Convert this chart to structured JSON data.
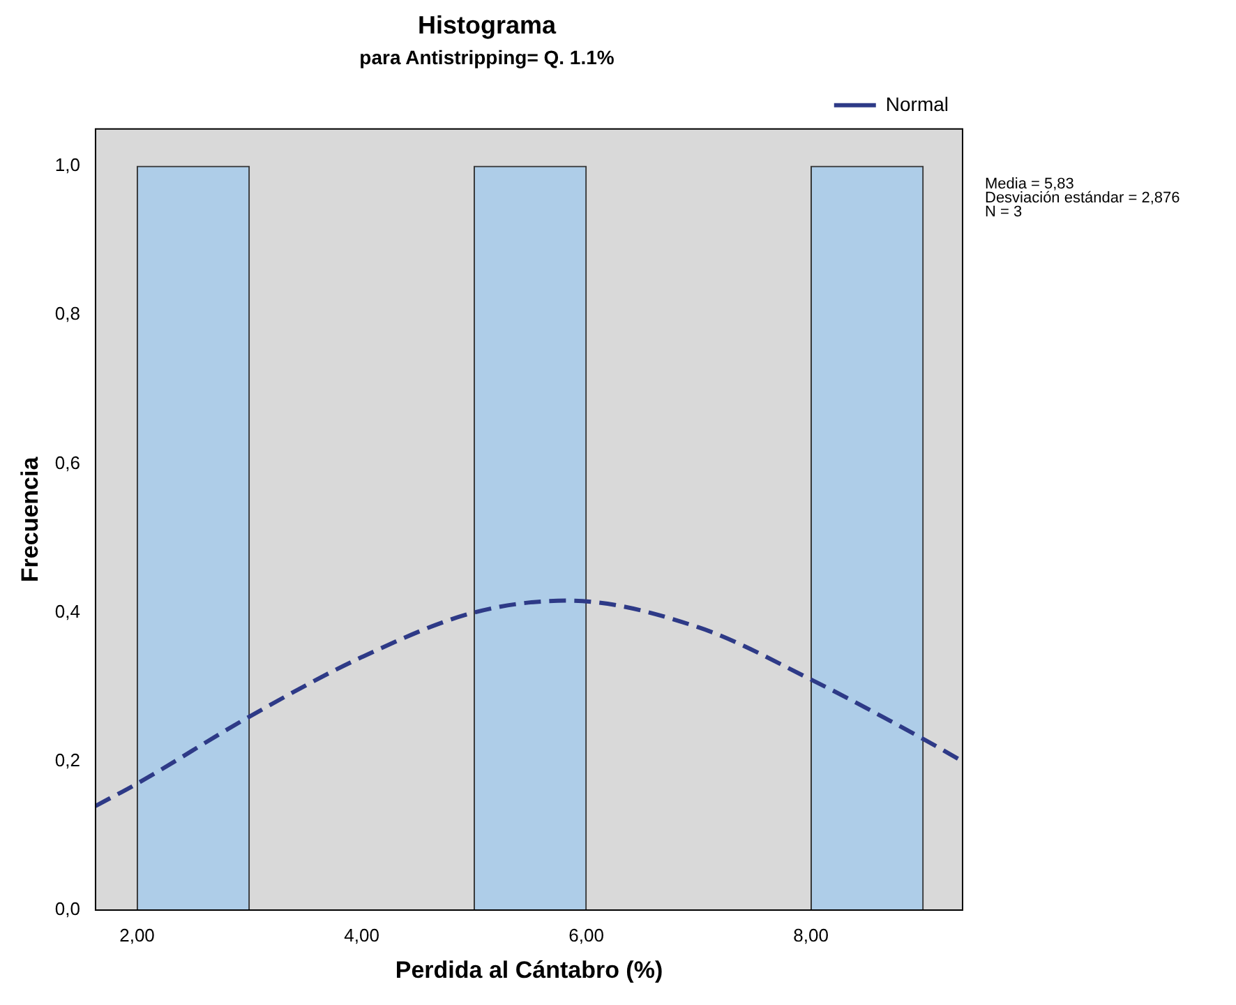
{
  "chart_data": {
    "type": "histogram",
    "title": "Histograma",
    "subtitle": "para Antistripping= Q. 1.1%",
    "xlabel": "Perdida al Cántabro (%)",
    "ylabel": "Frecuencia",
    "bins": [
      2,
      3,
      4,
      5,
      6,
      7,
      8,
      9
    ],
    "values": [
      1,
      0,
      0,
      1,
      0,
      0,
      1
    ],
    "color": "#aecde8",
    "series": [
      {
        "type": "line",
        "name": "Normal",
        "color": "#2e3a87",
        "line_style": "dashed",
        "marker": "none",
        "x": [
          1.63,
          2,
          3,
          4,
          5,
          5.83,
          7,
          8,
          9,
          9.35
        ],
        "values": [
          0.14,
          0.17,
          0.26,
          0.34,
          0.4,
          0.416,
          0.38,
          0.31,
          0.23,
          0.2
        ]
      }
    ],
    "xlim": [
      1.63,
      9.35
    ],
    "xticks": [
      {
        "value": 2,
        "label": "2,00"
      },
      {
        "value": 4,
        "label": "4,00"
      },
      {
        "value": 6,
        "label": "6,00"
      },
      {
        "value": 8,
        "label": "8,00"
      }
    ],
    "ylim": [
      0,
      1.05
    ],
    "yticks": [
      {
        "value": 0,
        "label": "0,0"
      },
      {
        "value": 0.2,
        "label": "0,2"
      },
      {
        "value": 0.4,
        "label": "0,4"
      },
      {
        "value": 0.6,
        "label": "0,6"
      },
      {
        "value": 0.8,
        "label": "0,8"
      },
      {
        "value": 1,
        "label": "1,0"
      }
    ],
    "grid": false,
    "legend": "top right",
    "annotations": [
      "Media = 5,83",
      "Desviación estándar = 2,876",
      "N = 3"
    ]
  }
}
